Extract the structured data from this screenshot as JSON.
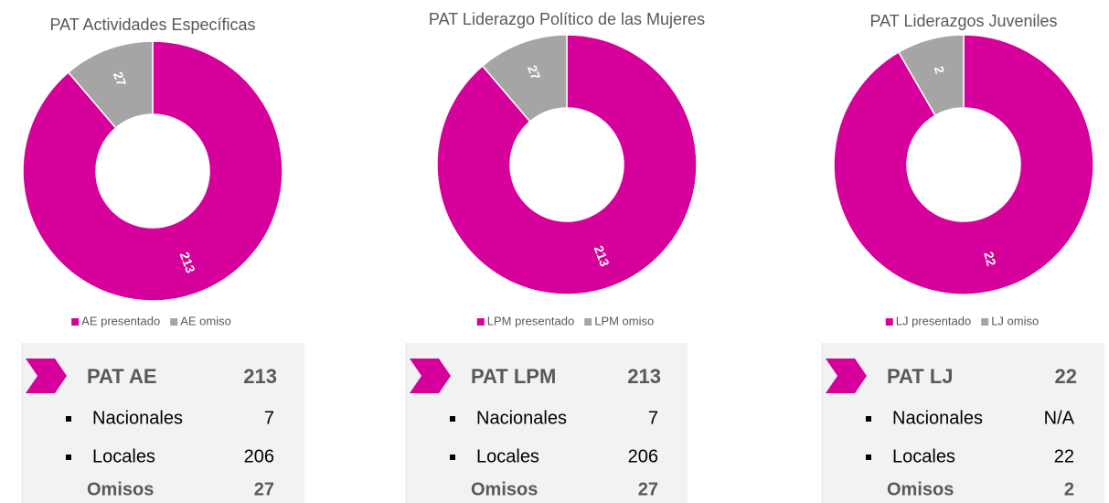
{
  "chart_data": [
    {
      "type": "pie",
      "title": "PAT Actividades Específicas",
      "categories": [
        "AE presentado",
        "AE omiso"
      ],
      "values": [
        213,
        27
      ],
      "colors": [
        "#d6009a",
        "#a5a5a5"
      ]
    },
    {
      "type": "pie",
      "title": "PAT Liderazgo Político de las Mujeres",
      "categories": [
        "LPM presentado",
        "LPM omiso"
      ],
      "values": [
        213,
        27
      ],
      "colors": [
        "#d6009a",
        "#a5a5a5"
      ]
    },
    {
      "type": "pie",
      "title": "PAT Liderazgos Juveniles",
      "categories": [
        "LJ presentado",
        "LJ omiso"
      ],
      "values": [
        22,
        2
      ],
      "colors": [
        "#d6009a",
        "#a5a5a5"
      ]
    }
  ],
  "panels": [
    {
      "title": "PAT AE",
      "total": 213,
      "rows": [
        {
          "label": "Nacionales",
          "value": 7
        },
        {
          "label": "Locales",
          "value": 206
        }
      ],
      "omisos_label": "Omisos",
      "omisos": 27
    },
    {
      "title": "PAT LPM",
      "total": 213,
      "rows": [
        {
          "label": "Nacionales",
          "value": 7
        },
        {
          "label": "Locales",
          "value": 206
        }
      ],
      "omisos_label": "Omisos",
      "omisos": 27
    },
    {
      "title": "PAT LJ",
      "total": 22,
      "rows": [
        {
          "label": "Nacionales",
          "value": "N/A"
        },
        {
          "label": "Locales",
          "value": 22
        }
      ],
      "omisos_label": "Omisos",
      "omisos": 2
    }
  ]
}
